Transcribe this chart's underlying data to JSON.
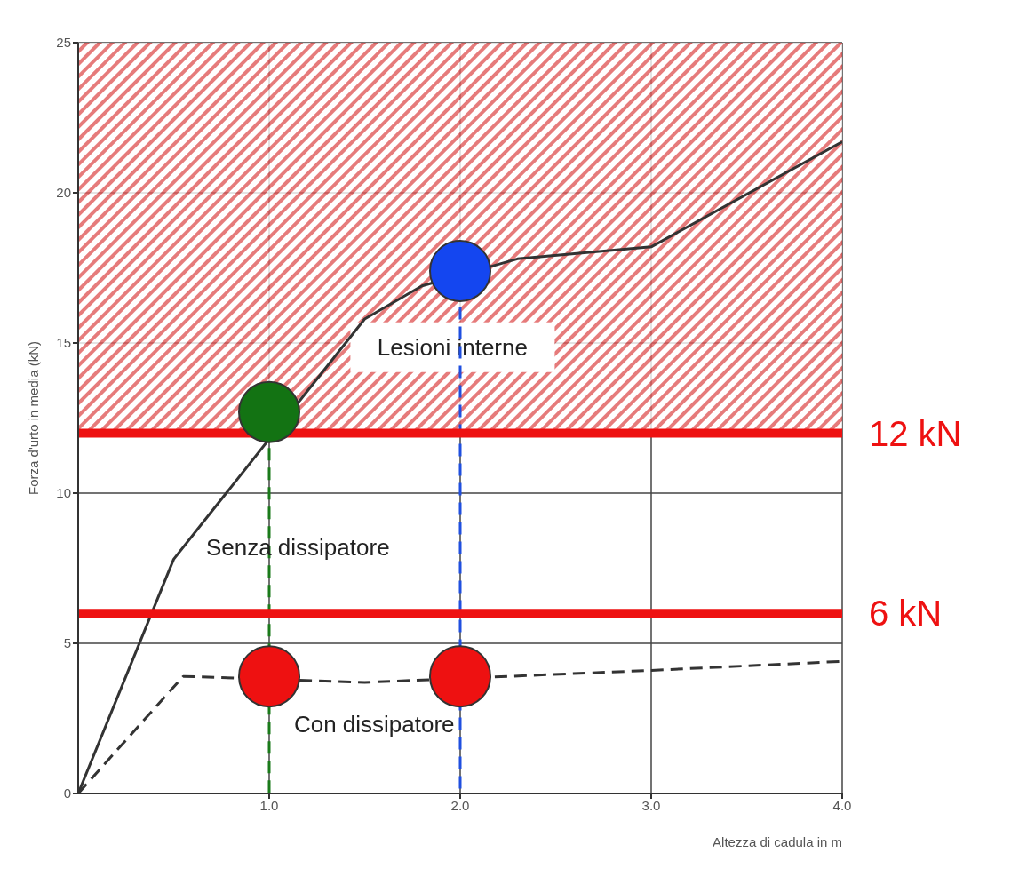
{
  "chart_data": {
    "type": "line",
    "xlabel": "Altezza di cadula in m",
    "ylabel": "Forza d'urto in media (kN)",
    "xlim": [
      0,
      4
    ],
    "xticks": [
      {
        "value": 1,
        "label": "1.0"
      },
      {
        "value": 2,
        "label": "2.0"
      },
      {
        "value": 3,
        "label": "3.0"
      },
      {
        "value": 4,
        "label": "4.0"
      }
    ],
    "ylim": [
      0,
      25
    ],
    "yticks": [
      0,
      5,
      10,
      15,
      20,
      25
    ],
    "grid": true,
    "series": [
      {
        "name": "Senza dissipatore",
        "color": "#333333",
        "x": [
          0,
          0.5,
          1.5,
          1.8,
          2.3,
          3.0,
          4.0
        ],
        "values": [
          0,
          7.8,
          15.8,
          16.9,
          17.8,
          18.2,
          21.7
        ],
        "line_style": "solid"
      },
      {
        "name": "Con dissipatore",
        "color": "#333333",
        "x": [
          0,
          0.55,
          1.5,
          3.0,
          4.0
        ],
        "values": [
          0,
          3.9,
          3.7,
          4.1,
          4.4
        ],
        "line_style": "dashed"
      },
      {
        "color": "#1a7a1a",
        "x": [
          1,
          1
        ],
        "values": [
          11.5,
          0
        ],
        "line_style": "dashed"
      },
      {
        "color": "#1f4fe0",
        "x": [
          2,
          2
        ],
        "values": [
          16.2,
          0
        ],
        "line_style": "dashed"
      },
      {
        "type": "scatter",
        "color": "#137313",
        "x": [
          1
        ],
        "values": [
          12.7
        ],
        "marker": "circle"
      },
      {
        "type": "scatter",
        "color": "#1446f0",
        "x": [
          2
        ],
        "values": [
          17.4
        ],
        "marker": "circle"
      },
      {
        "type": "scatter",
        "color": "#ee1111",
        "x": [
          1,
          2
        ],
        "values": [
          3.9,
          3.9
        ],
        "marker": "circle"
      }
    ],
    "bands": [
      {
        "axis": "y",
        "from": 12,
        "to": 25,
        "label": "Lesioni interne",
        "color": "#e05a5a"
      }
    ],
    "ref_lines": [
      {
        "axis": "y",
        "value": 12,
        "label": "12 kN",
        "color": "#ee1111"
      },
      {
        "axis": "y",
        "value": 6,
        "label": "6 kN",
        "color": "#ee1111"
      }
    ]
  }
}
